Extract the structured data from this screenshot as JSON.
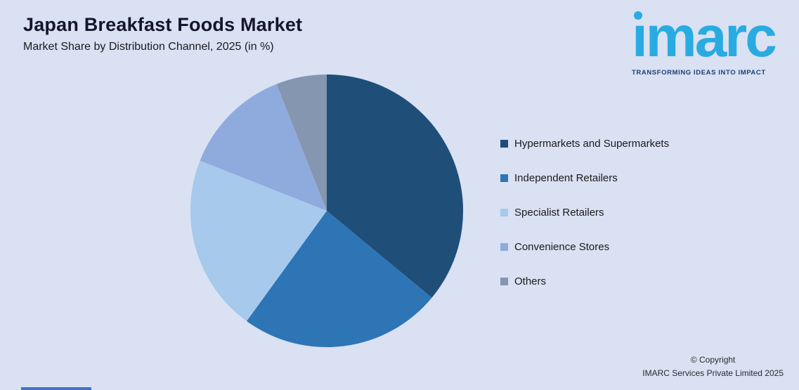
{
  "page": {
    "background": "#d9e1f3"
  },
  "header": {
    "title": "Japan Breakfast Foods Market",
    "subtitle": "Market Share by Distribution Channel, 2025 (in %)"
  },
  "logo": {
    "text": "imarc",
    "tagline": "TRANSFORMING IDEAS INTO IMPACT",
    "color": "#29abe2",
    "tagline_color": "#1c3f77"
  },
  "chart_data": {
    "type": "pie",
    "title": "Japan Breakfast Foods Market",
    "subtitle": "Market Share by Distribution Channel, 2025 (in %)",
    "start_angle_deg": 0,
    "direction": "clockwise",
    "legend_position": "right",
    "values_are_percent": true,
    "segments": [
      {
        "label": "Hypermarkets and Supermarkets",
        "value": 36,
        "color": "#1f4e79"
      },
      {
        "label": "Independent Retailers",
        "value": 24,
        "color": "#2e75b6"
      },
      {
        "label": "Specialist Retailers",
        "value": 21,
        "color": "#a6c9ec"
      },
      {
        "label": "Convenience Stores",
        "value": 13,
        "color": "#8faadc"
      },
      {
        "label": "Others",
        "value": 6,
        "color": "#8496b0"
      }
    ]
  },
  "footer": {
    "copyright_line1": "© Copyright",
    "copyright_line2": "IMARC Services Private Limited 2025"
  },
  "accent_bar_color": "#4472c4"
}
